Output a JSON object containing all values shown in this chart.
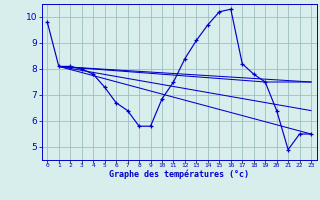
{
  "hours": [
    0,
    1,
    2,
    3,
    4,
    5,
    6,
    7,
    8,
    9,
    10,
    11,
    12,
    13,
    14,
    15,
    16,
    17,
    18,
    19,
    20,
    21,
    22,
    23
  ],
  "temp_main": [
    9.8,
    8.1,
    8.1,
    8.0,
    7.8,
    7.3,
    6.7,
    6.4,
    5.8,
    5.8,
    6.85,
    7.5,
    8.4,
    9.1,
    9.7,
    10.2,
    10.3,
    8.2,
    7.8,
    7.5,
    6.4,
    4.9,
    5.5,
    5.5
  ],
  "line_straight": [
    {
      "x": [
        1,
        23
      ],
      "y": [
        8.1,
        7.5
      ]
    },
    {
      "x": [
        1,
        23
      ],
      "y": [
        8.1,
        6.4
      ]
    },
    {
      "x": [
        1,
        23
      ],
      "y": [
        8.1,
        5.5
      ]
    },
    {
      "x": [
        1,
        19,
        23
      ],
      "y": [
        8.1,
        7.5,
        7.5
      ]
    }
  ],
  "bg_color": "#d8eeed",
  "grid_color": "#a0bfbf",
  "line_color": "#0000cc",
  "xlabel": "Graphe des températures (°c)",
  "xlim": [
    -0.5,
    23.5
  ],
  "ylim": [
    4.5,
    10.5
  ],
  "yticks": [
    5,
    6,
    7,
    8,
    9,
    10
  ],
  "xticks": [
    0,
    1,
    2,
    3,
    4,
    5,
    6,
    7,
    8,
    9,
    10,
    11,
    12,
    13,
    14,
    15,
    16,
    17,
    18,
    19,
    20,
    21,
    22,
    23
  ]
}
